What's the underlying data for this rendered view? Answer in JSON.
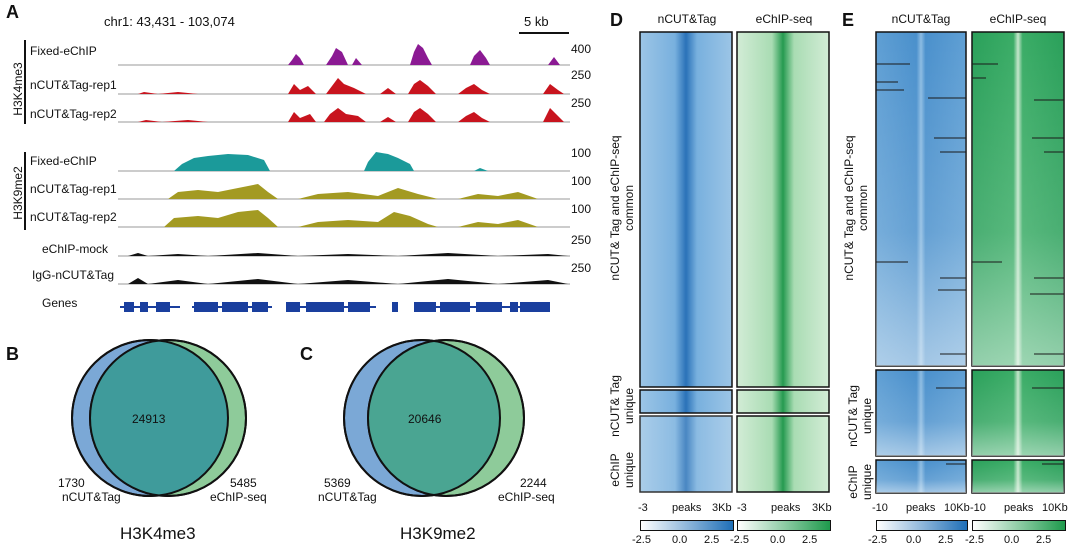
{
  "panelA": {
    "letter": "A",
    "locus": "chr1: 43,431 - 103,074",
    "scale_bar": "5 kb",
    "group_h3k4me3": "H3K4me3",
    "group_h3k9me2": "H3K9me2",
    "genes_label": "Genes",
    "tracks": [
      {
        "id": "k4-fixed",
        "label": "Fixed-eChIP",
        "max": "400",
        "color": "#8b1a93"
      },
      {
        "id": "k4-rep1",
        "label": "nCUT&Tag-rep1",
        "max": "250",
        "color": "#c8141e"
      },
      {
        "id": "k4-rep2",
        "label": "nCUT&Tag-rep2",
        "max": "250",
        "color": "#c8141e"
      },
      {
        "id": "k9-fixed",
        "label": "Fixed-eChIP",
        "max": "100",
        "color": "#1b9a9a"
      },
      {
        "id": "k9-rep1",
        "label": "nCUT&Tag-rep1",
        "max": "100",
        "color": "#a39a22"
      },
      {
        "id": "k9-rep2",
        "label": "nCUT&Tag-rep2",
        "max": "100",
        "color": "#a39a22"
      },
      {
        "id": "mock",
        "label": "eChIP-mock",
        "max": "250",
        "color": "#111111"
      },
      {
        "id": "igg",
        "label": "IgG-nCUT&Tag",
        "max": "250",
        "color": "#111111"
      }
    ]
  },
  "panelB": {
    "letter": "B",
    "title": "H3K4me3",
    "common": "24913",
    "left_count": "1730",
    "left_label": "nCUT&Tag",
    "right_count": "5485",
    "right_label": "eChIP-seq"
  },
  "panelC": {
    "letter": "C",
    "title": "H3K9me2",
    "common": "20646",
    "left_count": "5369",
    "left_label": "nCUT&Tag",
    "right_count": "2244",
    "right_label": "eChIP-seq"
  },
  "panelD": {
    "letter": "D",
    "col1": "nCUT&Tag",
    "col2": "eChIP-seq",
    "row1_label_a": "nCUT& Tag and  eChIP-seq",
    "row1_label_b": "common",
    "row2_label_a": "nCUT& Tag",
    "row2_label_b": "unique",
    "row3_label_a": "eChIP",
    "row3_label_b": "unique",
    "x_left": "-3",
    "x_mid": "peaks",
    "x_right": "3Kb",
    "scale_ticks": [
      "-2.5",
      "0.0",
      "2.5"
    ]
  },
  "panelE": {
    "letter": "E",
    "col1": "nCUT&Tag",
    "col2": "eChIP-seq",
    "row1_label_a": "nCUT& Tag and  eChIP-seq",
    "row1_label_b": "common",
    "row2_label_a": "nCUT& Tag",
    "row2_label_b": "unique",
    "row3_label_a": "eChIP",
    "row3_label_b": "unique",
    "x_left": "-10",
    "x_mid": "peaks",
    "x_right": "10Kb",
    "scale_ticks": [
      "-2.5",
      "0.0",
      "2.5"
    ]
  },
  "colors": {
    "blue": "#1f6fb7",
    "green": "#1e9a4c",
    "venn_blue": "#7ba8d6",
    "venn_green": "#8ecb9a",
    "venn_overlap": "#3f9b9b"
  }
}
